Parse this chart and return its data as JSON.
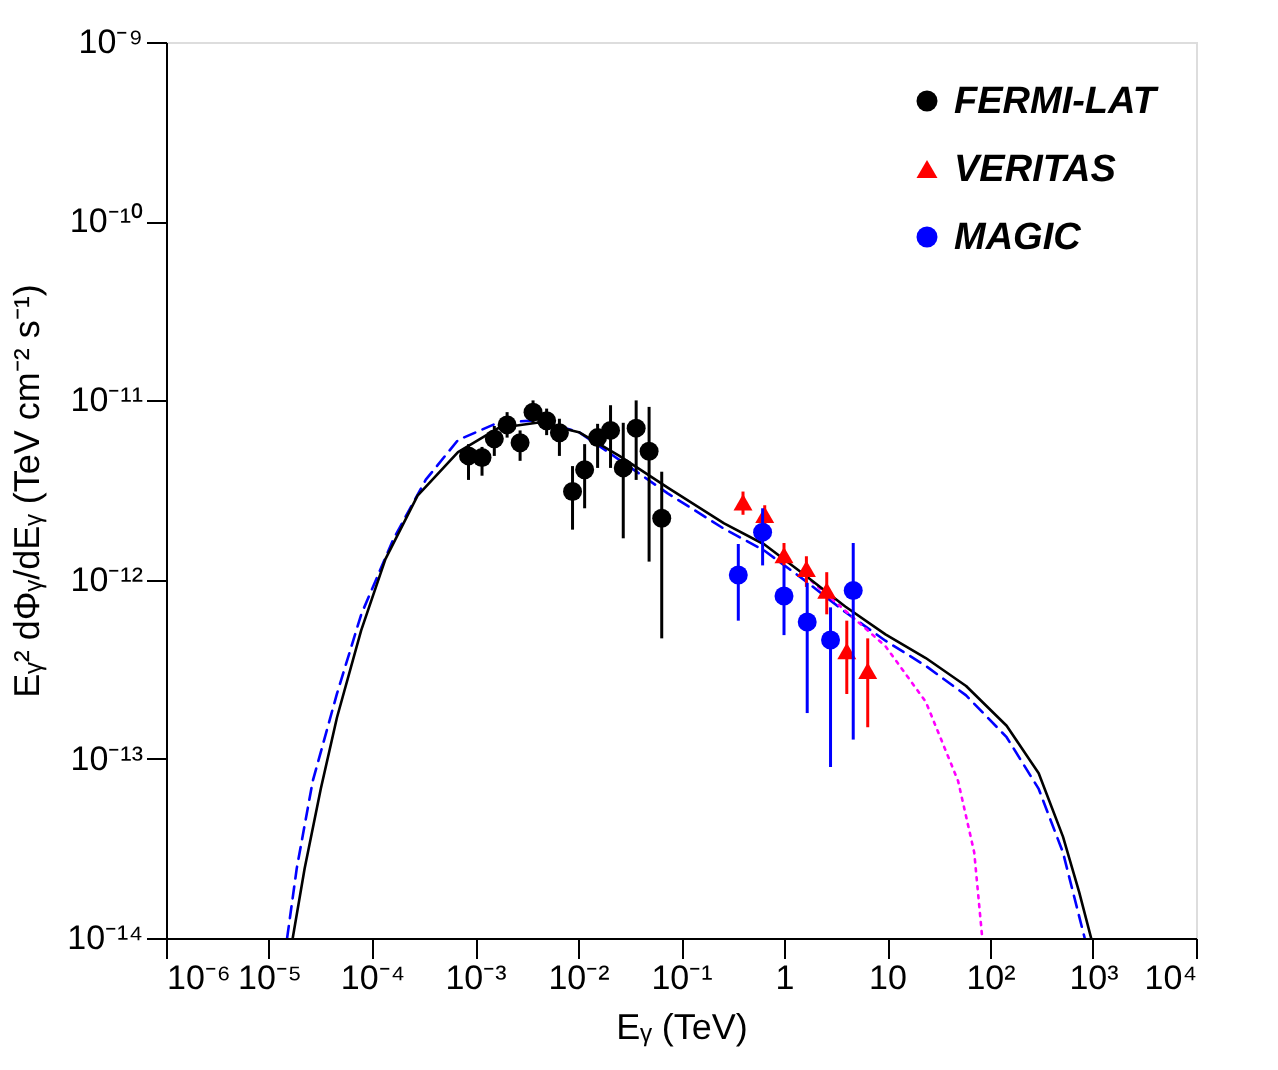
{
  "chart_data": {
    "type": "scatter",
    "xlabel": "Eᵧ  (TeV)",
    "ylabel": "Eᵧ² dΦᵧ/dEᵧ (TeV cm⁻² s⁻¹)",
    "log": "xy",
    "grid": false,
    "legend": "top right",
    "xlim": [
      1e-06,
      10000.0
    ],
    "ylim": [
      1e-14,
      1e-09
    ],
    "xticks": [
      {
        "value": 1e-06,
        "label": "10⁻⁶"
      },
      {
        "value": 1e-05,
        "label": "10⁻⁵"
      },
      {
        "value": 0.0001,
        "label": "10⁻⁴"
      },
      {
        "value": 0.001,
        "label": "10⁻³"
      },
      {
        "value": 0.01,
        "label": "10⁻²"
      },
      {
        "value": 0.1,
        "label": "10⁻¹"
      },
      1,
      10,
      {
        "value": 100,
        "label": "10²"
      },
      {
        "value": 1000,
        "label": "10³"
      },
      {
        "value": 10000,
        "label": "10⁴"
      }
    ],
    "yticks": [
      {
        "value": 1e-14,
        "label": "10⁻¹⁴"
      },
      {
        "value": 1e-13,
        "label": "10⁻¹³"
      },
      {
        "value": 1e-12,
        "label": "10⁻¹²"
      },
      {
        "value": 1e-11,
        "label": "10⁻¹¹"
      },
      {
        "value": 1e-10,
        "label": "10⁻¹⁰"
      },
      {
        "value": 1e-09,
        "label": "10⁻⁹"
      }
    ],
    "series": [
      {
        "type": "line",
        "color": "#0000ff",
        "line_style": "dashed",
        "x": [
          1.5e-05,
          1.86e-05,
          2.66e-05,
          4.57e-05,
          7.85e-05,
          0.000161,
          0.000333,
          0.000684,
          0.00168,
          0.00415,
          0.0102,
          0.0252,
          0.0743,
          0.262,
          0.646,
          1.59,
          3.93,
          9.66,
          23.8,
          58.6,
          145,
          297,
          511,
          830
        ],
        "values": [
          1e-14,
          2.45e-14,
          7.52e-14,
          2.31e-13,
          6.38e-13,
          1.68e-12,
          3.61e-12,
          6.01e-12,
          7.52e-12,
          7.74e-12,
          6.65e-12,
          4.66e-12,
          3.03e-12,
          1.92e-12,
          1.45e-12,
          9.9e-13,
          6.59e-13,
          4.56e-13,
          3.3e-13,
          2.26e-13,
          1.32e-13,
          6.79e-14,
          3e-14,
          1e-14
        ]
      },
      {
        "type": "line",
        "color": "#ff00ff",
        "line_style": "dotted",
        "x": [
          1.59,
          3.93,
          9.66,
          23.8,
          49,
          70.3,
          84.1
        ],
        "values": [
          1.06e-12,
          6.71e-13,
          4.25e-13,
          2.08e-13,
          7.52e-14,
          3e-14,
          1e-14
        ]
      },
      {
        "type": "line",
        "color": "#000000",
        "line_style": "solid",
        "x": [
          1.7e-05,
          2.22e-05,
          3.18e-05,
          4.57e-05,
          7.85e-05,
          0.000135,
          0.000277,
          0.000684,
          0.00168,
          0.00415,
          0.0102,
          0.0252,
          0.0743,
          0.262,
          0.646,
          1.59,
          3.93,
          9.66,
          23.8,
          58.6,
          145,
          297,
          511,
          733,
          959
        ],
        "values": [
          1e-14,
          2.45e-14,
          6.79e-14,
          1.7e-13,
          5.21e-13,
          1.3e-12,
          2.94e-12,
          5.15e-12,
          7e-12,
          7.52e-12,
          6.65e-12,
          4.9e-12,
          3.26e-12,
          2.06e-12,
          1.57e-12,
          1.06e-12,
          7.08e-13,
          4.95e-13,
          3.65e-13,
          2.55e-13,
          1.53e-13,
          8.3e-14,
          3.68e-14,
          1.81e-14,
          1e-14
        ]
      },
      {
        "name": "FERMI-LAT",
        "color": "#000000",
        "marker": "circle",
        "x": [
          0.000865,
          0.00117,
          0.00154,
          0.00205,
          0.00274,
          0.00366,
          0.00496,
          0.0066,
          0.00885,
          0.0116,
          0.0155,
          0.0207,
          0.0275,
          0.0367,
          0.049,
          0.065
        ],
        "values": [
          4.9e-12,
          4.8e-12,
          6.1e-12,
          7.3e-12,
          5.8e-12,
          8.6e-12,
          7.7e-12,
          6.6e-12,
          3.1e-12,
          4.1e-12,
          6.2e-12,
          6.8e-12,
          4.2e-12,
          7e-12,
          5.2e-12,
          2.2e-12
        ],
        "errors": [
          [
            3.6e-12,
            5.7e-12
          ],
          [
            3.8e-12,
            5.5e-12
          ],
          [
            4.9e-12,
            7.2e-12
          ],
          [
            6.2e-12,
            8.6e-12
          ],
          [
            4.6e-12,
            6.8e-12
          ],
          [
            7.4e-12,
            1e-11
          ],
          [
            6.4e-12,
            9e-12
          ],
          [
            4.9e-12,
            7.9e-12
          ],
          [
            1.9e-12,
            4.3e-12
          ],
          [
            2.5e-12,
            5.7e-12
          ],
          [
            4.2e-12,
            7.4e-12
          ],
          [
            4.2e-12,
            9.4e-12
          ],
          [
            1.7e-12,
            7.5e-12
          ],
          [
            3.6e-12,
            1e-11
          ],
          [
            1.26e-12,
            9.2e-12
          ],
          [
            4.7e-13,
            4e-12
          ]
        ]
      },
      {
        "name": "VERITAS",
        "color": "#ff0000",
        "marker": "triangle",
        "x": [
          0.4,
          0.65,
          1.0,
          1.65,
          2.6,
          4.07,
          6.5
        ],
        "values": [
          2.7e-12,
          2.3e-12,
          1.37e-12,
          1.15e-12,
          8.7e-13,
          4e-13,
          3.1e-13
        ],
        "errors": [
          [
            2.3e-12,
            3.1e-12
          ],
          [
            2e-12,
            2.6e-12
          ],
          [
            1.2e-12,
            1.6e-12
          ],
          [
            9.1e-13,
            1.35e-12
          ],
          [
            6.4e-13,
            1.1e-12
          ],
          [
            2.3e-13,
            5.9e-13
          ],
          [
            1.5e-13,
            4.7e-13
          ]
        ]
      },
      {
        "name": "MAGIC",
        "color": "#0000ff",
        "marker": "circle",
        "x": [
          0.36,
          0.62,
          1.0,
          1.68,
          2.83,
          4.7
        ],
        "values": [
          1.06e-12,
          1.84e-12,
          8.1e-13,
          5.8e-13,
          4.6e-13,
          8.7e-13
        ],
        "errors": [
          [
            5.9e-13,
            1.58e-12
          ],
          [
            1.2e-12,
            2.5e-12
          ],
          [
            4.9e-13,
            1.2e-12
          ],
          [
            1.8e-13,
            9.6e-13
          ],
          [
            9e-14,
            7e-13
          ],
          [
            1.28e-13,
            1.6e-12
          ]
        ]
      }
    ]
  }
}
